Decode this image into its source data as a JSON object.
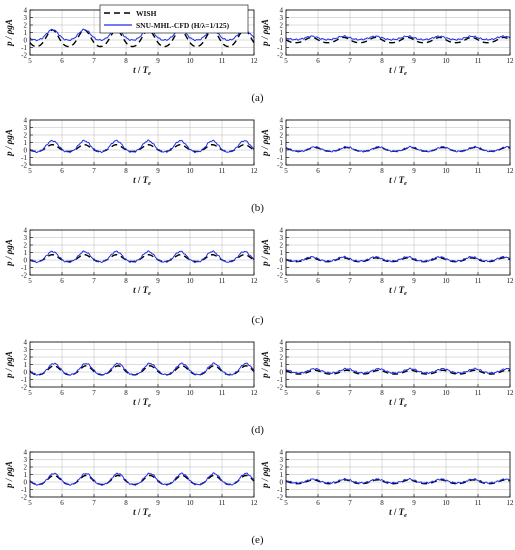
{
  "legend": {
    "items": [
      {
        "label": "WISH",
        "color": "#000000",
        "dash": "6,4"
      },
      {
        "label": "SNU-MHL-CFD (H/λ=1/125)",
        "color": "#1f2ee8",
        "dash": ""
      }
    ]
  },
  "axis_text": {
    "xlabel_t": "t",
    "xlabel_slash": " / ",
    "xlabel_T": "T",
    "xlabel_sub": "e",
    "ylabel": "p / ρgA"
  },
  "rows": [
    {
      "label": "(a)"
    },
    {
      "label": "(b)"
    },
    {
      "label": "(c)"
    },
    {
      "label": "(d)"
    },
    {
      "label": "(e)"
    }
  ],
  "chart_data": [
    {
      "type": "line",
      "row": "(a)",
      "column": "left",
      "xlim": [
        5,
        12
      ],
      "ylim": [
        -2,
        4
      ],
      "x_ticks": [
        5,
        6,
        7,
        8,
        9,
        10,
        11,
        12
      ],
      "y_ticks": [
        -2,
        -1,
        0,
        1,
        2,
        3,
        4
      ],
      "grid": true,
      "xlabel": "t / Te",
      "ylabel": "p / ρgA",
      "series": [
        {
          "name": "WISH",
          "period": 1,
          "mean": 0.1,
          "amplitude": 1.1,
          "peak_at": 5.7
        },
        {
          "name": "SNU-MHL-CFD (H/λ=1/125)",
          "period": 1,
          "mean": 0.6,
          "amplitude": 0.7,
          "peak_at": 5.7
        }
      ]
    },
    {
      "type": "line",
      "row": "(a)",
      "column": "right",
      "xlim": [
        5,
        12
      ],
      "ylim": [
        -2,
        4
      ],
      "x_ticks": [
        5,
        6,
        7,
        8,
        9,
        10,
        11,
        12
      ],
      "y_ticks": [
        -2,
        -1,
        0,
        1,
        2,
        3,
        4
      ],
      "grid": true,
      "xlabel": "t / Te",
      "ylabel": "p / ρgA",
      "series": [
        {
          "name": "WISH",
          "period": 1,
          "mean": -0.05,
          "amplitude": 0.35,
          "peak_at": 5.8
        },
        {
          "name": "SNU-MHL-CFD (H/λ=1/125)",
          "period": 1,
          "mean": 0.25,
          "amplitude": 0.22,
          "peak_at": 5.8
        }
      ]
    },
    {
      "type": "line",
      "row": "(b)",
      "column": "left",
      "xlim": [
        5,
        12
      ],
      "ylim": [
        -2,
        4
      ],
      "x_ticks": [
        5,
        6,
        7,
        8,
        9,
        10,
        11,
        12
      ],
      "y_ticks": [
        -2,
        -1,
        0,
        1,
        2,
        3,
        4
      ],
      "grid": true,
      "xlabel": "t / Te",
      "ylabel": "p / ρgA",
      "series": [
        {
          "name": "WISH",
          "period": 1,
          "mean": 0.2,
          "amplitude": 0.45,
          "peak_at": 5.7
        },
        {
          "name": "SNU-MHL-CFD (H/λ=1/125)",
          "period": 1,
          "mean": 0.4,
          "amplitude": 0.75,
          "peak_at": 5.7
        }
      ]
    },
    {
      "type": "line",
      "row": "(b)",
      "column": "right",
      "xlim": [
        5,
        12
      ],
      "ylim": [
        -2,
        4
      ],
      "x_ticks": [
        5,
        6,
        7,
        8,
        9,
        10,
        11,
        12
      ],
      "y_ticks": [
        -2,
        -1,
        0,
        1,
        2,
        3,
        4
      ],
      "grid": true,
      "xlabel": "t / Te",
      "ylabel": "p / ρgA",
      "series": [
        {
          "name": "WISH",
          "period": 1,
          "mean": 0.05,
          "amplitude": 0.25,
          "peak_at": 5.9
        },
        {
          "name": "SNU-MHL-CFD (H/λ=1/125)",
          "period": 1,
          "mean": 0.08,
          "amplitude": 0.3,
          "peak_at": 5.9
        }
      ]
    },
    {
      "type": "line",
      "row": "(c)",
      "column": "left",
      "xlim": [
        5,
        12
      ],
      "ylim": [
        -2,
        4
      ],
      "x_ticks": [
        5,
        6,
        7,
        8,
        9,
        10,
        11,
        12
      ],
      "y_ticks": [
        -2,
        -1,
        0,
        1,
        2,
        3,
        4
      ],
      "grid": true,
      "xlabel": "t / Te",
      "ylabel": "p / ρgA",
      "series": [
        {
          "name": "WISH",
          "period": 1,
          "mean": 0.2,
          "amplitude": 0.45,
          "peak_at": 5.7
        },
        {
          "name": "SNU-MHL-CFD (H/λ=1/125)",
          "period": 1,
          "mean": 0.35,
          "amplitude": 0.7,
          "peak_at": 5.7
        }
      ]
    },
    {
      "type": "line",
      "row": "(c)",
      "column": "right",
      "xlim": [
        5,
        12
      ],
      "ylim": [
        -2,
        4
      ],
      "x_ticks": [
        5,
        6,
        7,
        8,
        9,
        10,
        11,
        12
      ],
      "y_ticks": [
        -2,
        -1,
        0,
        1,
        2,
        3,
        4
      ],
      "grid": true,
      "xlabel": "t / Te",
      "ylabel": "p / ρgA",
      "series": [
        {
          "name": "WISH",
          "period": 1,
          "mean": 0.0,
          "amplitude": 0.25,
          "peak_at": 5.8
        },
        {
          "name": "SNU-MHL-CFD (H/λ=1/125)",
          "period": 1,
          "mean": 0.1,
          "amplitude": 0.28,
          "peak_at": 5.8
        }
      ]
    },
    {
      "type": "line",
      "row": "(d)",
      "column": "left",
      "xlim": [
        5,
        12
      ],
      "ylim": [
        -2,
        4
      ],
      "x_ticks": [
        5,
        6,
        7,
        8,
        9,
        10,
        11,
        12
      ],
      "y_ticks": [
        -2,
        -1,
        0,
        1,
        2,
        3,
        4
      ],
      "grid": true,
      "xlabel": "t / Te",
      "ylabel": "p / ρgA",
      "series": [
        {
          "name": "WISH",
          "period": 1,
          "mean": 0.15,
          "amplitude": 0.6,
          "peak_at": 5.75
        },
        {
          "name": "SNU-MHL-CFD (H/λ=1/125)",
          "period": 1,
          "mean": 0.3,
          "amplitude": 0.75,
          "peak_at": 5.75
        }
      ]
    },
    {
      "type": "line",
      "row": "(d)",
      "column": "right",
      "xlim": [
        5,
        12
      ],
      "ylim": [
        -2,
        4
      ],
      "x_ticks": [
        5,
        6,
        7,
        8,
        9,
        10,
        11,
        12
      ],
      "y_ticks": [
        -2,
        -1,
        0,
        1,
        2,
        3,
        4
      ],
      "grid": true,
      "xlabel": "t / Te",
      "ylabel": "p / ρgA",
      "series": [
        {
          "name": "WISH",
          "period": 1,
          "mean": -0.05,
          "amplitude": 0.25,
          "peak_at": 5.9
        },
        {
          "name": "SNU-MHL-CFD (H/λ=1/125)",
          "period": 1,
          "mean": 0.12,
          "amplitude": 0.28,
          "peak_at": 5.9
        }
      ]
    },
    {
      "type": "line",
      "row": "(e)",
      "column": "left",
      "xlim": [
        5,
        12
      ],
      "ylim": [
        -2,
        4
      ],
      "x_ticks": [
        5,
        6,
        7,
        8,
        9,
        10,
        11,
        12
      ],
      "y_ticks": [
        -2,
        -1,
        0,
        1,
        2,
        3,
        4
      ],
      "grid": true,
      "xlabel": "t / Te",
      "ylabel": "p / ρgA",
      "series": [
        {
          "name": "WISH",
          "period": 1,
          "mean": 0.2,
          "amplitude": 0.6,
          "peak_at": 5.75
        },
        {
          "name": "SNU-MHL-CFD (H/λ=1/125)",
          "period": 1,
          "mean": 0.3,
          "amplitude": 0.75,
          "peak_at": 5.75
        }
      ]
    },
    {
      "type": "line",
      "row": "(e)",
      "column": "right",
      "xlim": [
        5,
        12
      ],
      "ylim": [
        -2,
        4
      ],
      "x_ticks": [
        5,
        6,
        7,
        8,
        9,
        10,
        11,
        12
      ],
      "y_ticks": [
        -2,
        -1,
        0,
        1,
        2,
        3,
        4
      ],
      "grid": true,
      "xlabel": "t / Te",
      "ylabel": "p / ρgA",
      "series": [
        {
          "name": "WISH",
          "period": 1,
          "mean": 0.0,
          "amplitude": 0.25,
          "peak_at": 5.85
        },
        {
          "name": "SNU-MHL-CFD (H/λ=1/125)",
          "period": 1,
          "mean": 0.1,
          "amplitude": 0.25,
          "peak_at": 5.85
        }
      ]
    }
  ]
}
